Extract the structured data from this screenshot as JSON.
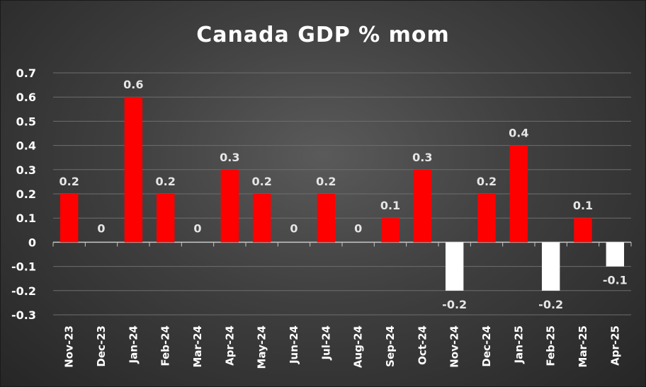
{
  "chart_data": {
    "type": "bar",
    "title": "Canada GDP % mom",
    "xlabel": "",
    "ylabel": "",
    "categories": [
      "Nov-23",
      "Dec-23",
      "Jan-24",
      "Feb-24",
      "Mar-24",
      "Apr-24",
      "May-24",
      "Jun-24",
      "Jul-24",
      "Aug-24",
      "Sep-24",
      "Oct-24",
      "Nov-24",
      "Dec-24",
      "Jan-25",
      "Feb-25",
      "Mar-25",
      "Apr-25"
    ],
    "values": [
      0.2,
      0,
      0.6,
      0.2,
      0,
      0.3,
      0.2,
      0,
      0.2,
      0,
      0.1,
      0.3,
      -0.2,
      0.2,
      0.4,
      -0.2,
      0.1,
      -0.1
    ],
    "data_labels": [
      "0.2",
      "0",
      "0.6",
      "0.2",
      "0",
      "0.3",
      "0.2",
      "0",
      "0.2",
      "0",
      "0.1",
      "0.3",
      "-0.2",
      "0.2",
      "0.4",
      "-0.2",
      "0.1",
      "-0.1"
    ],
    "bar_heights": [
      0.2,
      0,
      0.6,
      0.2,
      0,
      0.3,
      0.2,
      0,
      0.2,
      0,
      0.1,
      0.3,
      -0.2,
      0.2,
      0.4,
      -0.2,
      0.1,
      -0.1
    ],
    "y_ticks": [
      -0.3,
      -0.2,
      -0.1,
      0,
      0.1,
      0.2,
      0.3,
      0.4,
      0.5,
      0.6,
      0.7
    ],
    "y_tick_labels": [
      "-0.3",
      "-0.2",
      "-0.1",
      "0",
      "0.1",
      "0.2",
      "0.3",
      "0.4",
      "0.5",
      "0.6",
      "0.7"
    ],
    "ylim": [
      -0.3,
      0.7
    ],
    "grid": true,
    "legend": "none",
    "colors": {
      "positive": "#ff0000",
      "negative": "#ffffff",
      "grid": "#6e6e6e",
      "zero_line": "#c8c8c8"
    }
  }
}
